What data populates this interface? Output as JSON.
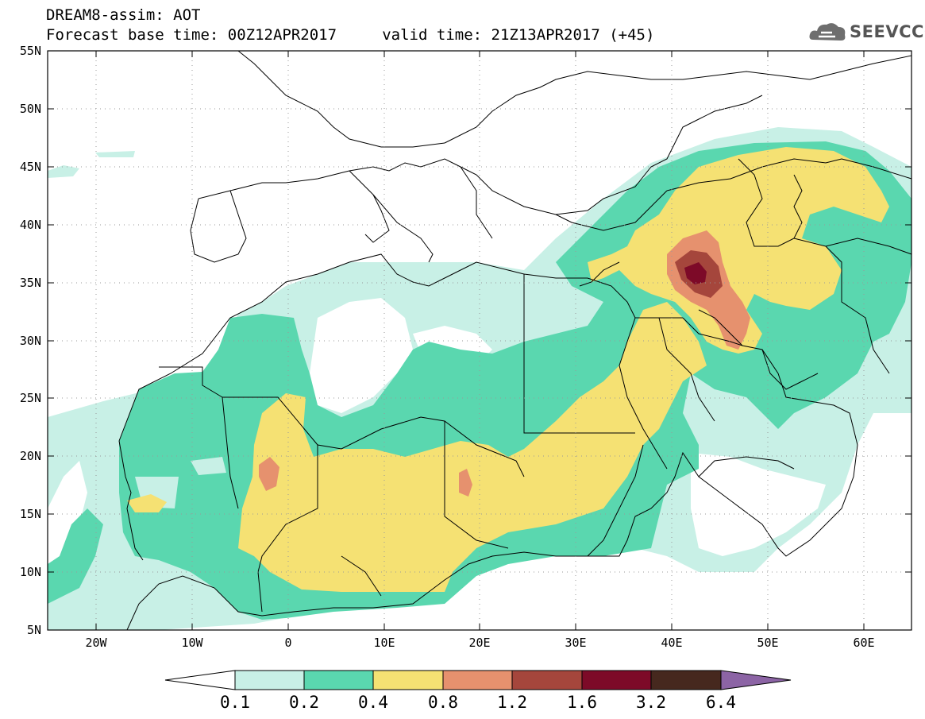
{
  "title": {
    "line1": "DREAM8-assim: AOT",
    "line2": "Forecast base time: 00Z12APR2017     valid time: 21Z13APR2017 (+45)"
  },
  "logo": {
    "text": "SEEVCCC",
    "icon": "cloud-icon"
  },
  "map": {
    "projection": "lat-lon",
    "lon_range": [
      -25,
      65
    ],
    "lat_range": [
      5,
      55
    ],
    "grid": "dotted"
  },
  "axes": {
    "lat_labels": [
      "55N",
      "50N",
      "45N",
      "40N",
      "35N",
      "30N",
      "25N",
      "20N",
      "15N",
      "10N",
      "5N"
    ],
    "lon_labels": [
      "20W",
      "10W",
      "0",
      "10E",
      "20E",
      "30E",
      "40E",
      "50E",
      "60E"
    ]
  },
  "colorbar": {
    "labels": [
      "0.1",
      "0.2",
      "0.4",
      "0.8",
      "1.2",
      "1.6",
      "3.2",
      "6.4"
    ],
    "colors": [
      "#ffffff",
      "#c8f0e6",
      "#5ad7af",
      "#f5e173",
      "#e6916e",
      "#a5463c",
      "#7d0a28",
      "#46281e",
      "#8c64a5"
    ]
  }
}
